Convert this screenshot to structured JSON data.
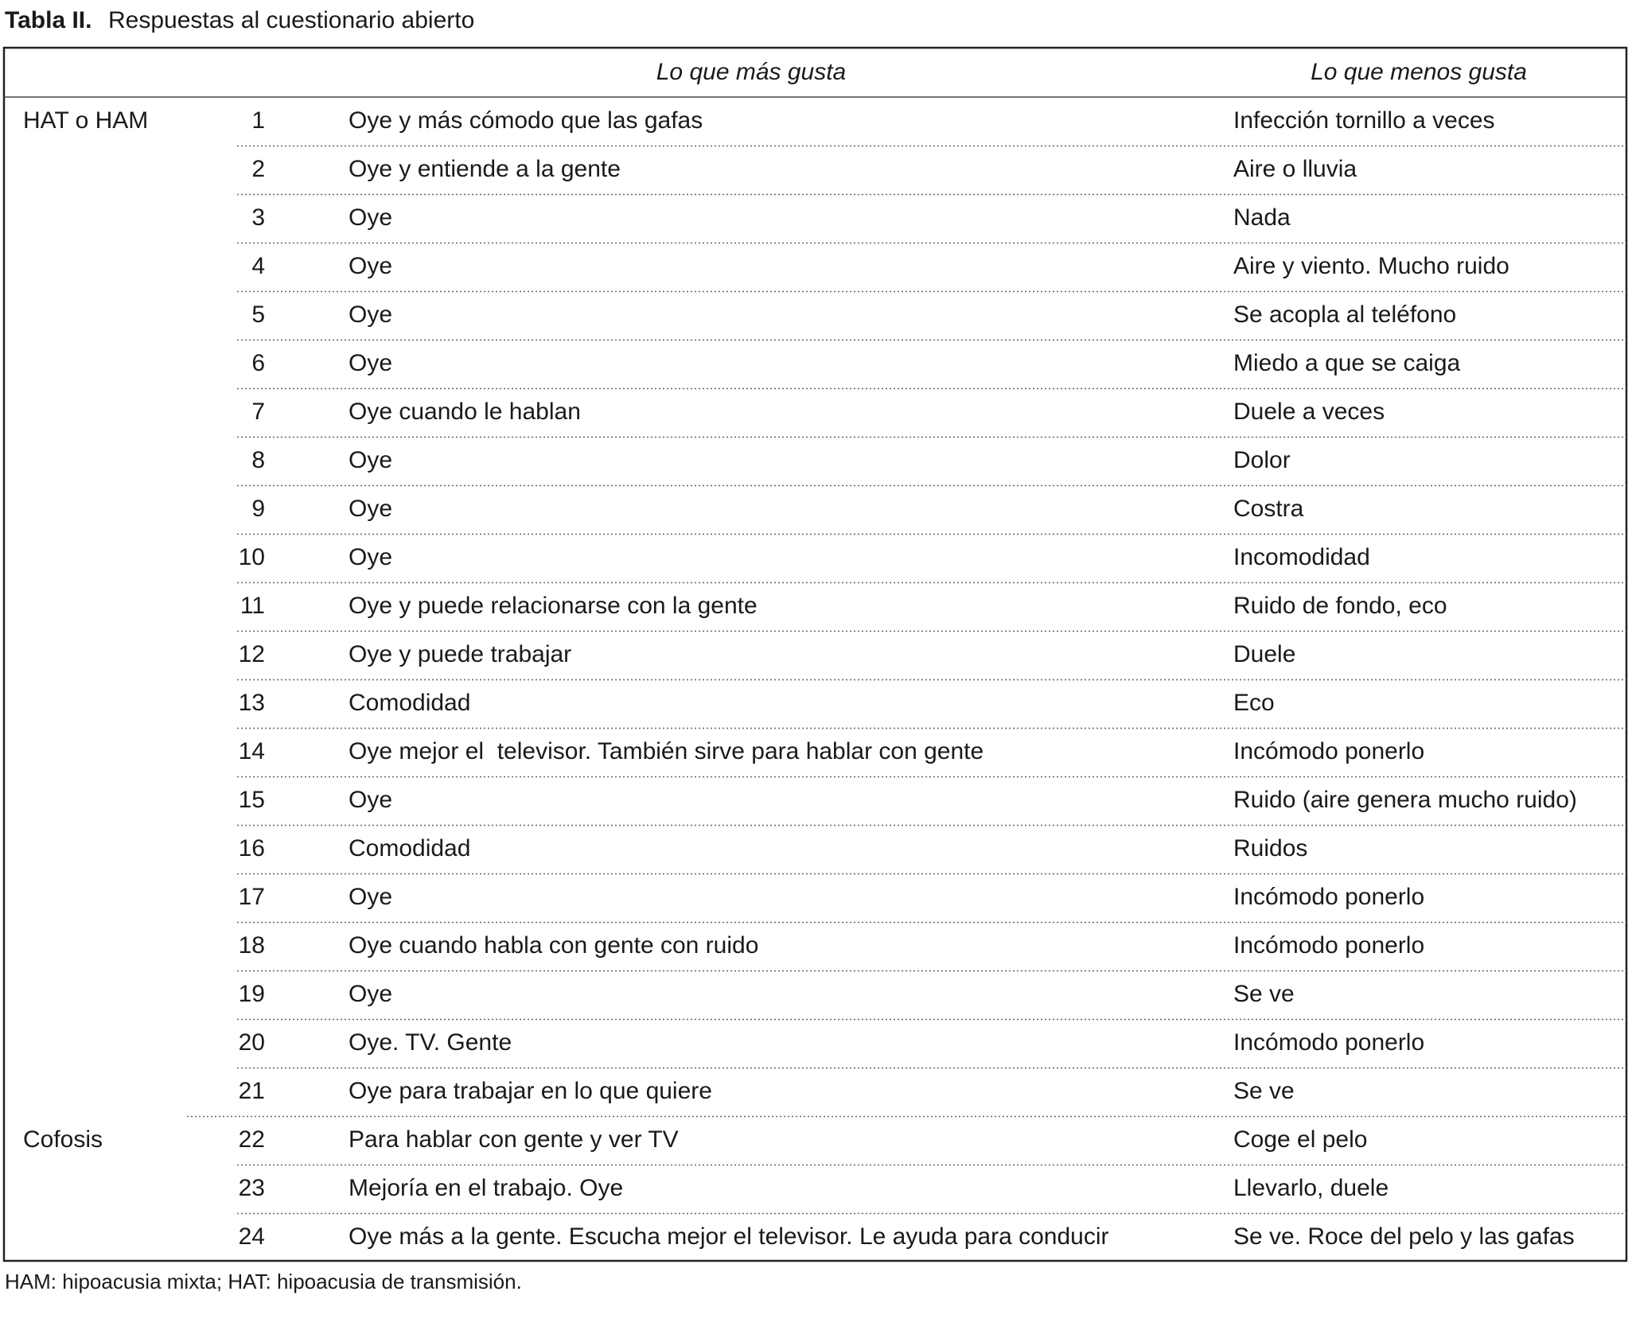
{
  "title": {
    "label": "Tabla II.",
    "text": "Respuestas al cuestionario abierto"
  },
  "columns": {
    "likes": "Lo que más gusta",
    "dislikes": "Lo que menos gusta"
  },
  "groups": [
    {
      "name": "HAT o HAM",
      "rows": [
        {
          "number": 1,
          "likes": "Oye y más cómodo que las gafas",
          "dislikes": "Infección tornillo a veces"
        },
        {
          "number": 2,
          "likes": "Oye y entiende a la gente",
          "dislikes": "Aire o lluvia"
        },
        {
          "number": 3,
          "likes": "Oye",
          "dislikes": "Nada"
        },
        {
          "number": 4,
          "likes": "Oye",
          "dislikes": "Aire y viento. Mucho ruido"
        },
        {
          "number": 5,
          "likes": "Oye",
          "dislikes": "Se acopla al teléfono"
        },
        {
          "number": 6,
          "likes": "Oye",
          "dislikes": "Miedo a que se caiga"
        },
        {
          "number": 7,
          "likes": "Oye cuando le hablan",
          "dislikes": "Duele a veces"
        },
        {
          "number": 8,
          "likes": "Oye",
          "dislikes": "Dolor"
        },
        {
          "number": 9,
          "likes": "Oye",
          "dislikes": "Costra"
        },
        {
          "number": 10,
          "likes": "Oye",
          "dislikes": "Incomodidad"
        },
        {
          "number": 11,
          "likes": "Oye y puede relacionarse con la gente",
          "dislikes": "Ruido de fondo, eco"
        },
        {
          "number": 12,
          "likes": "Oye y puede trabajar",
          "dislikes": "Duele"
        },
        {
          "number": 13,
          "likes": "Comodidad",
          "dislikes": "Eco"
        },
        {
          "number": 14,
          "likes": "Oye mejor el  televisor. También sirve para hablar con gente",
          "dislikes": "Incómodo ponerlo"
        },
        {
          "number": 15,
          "likes": "Oye",
          "dislikes": "Ruido (aire genera mucho ruido)"
        },
        {
          "number": 16,
          "likes": "Comodidad",
          "dislikes": "Ruidos"
        },
        {
          "number": 17,
          "likes": "Oye",
          "dislikes": "Incómodo ponerlo"
        },
        {
          "number": 18,
          "likes": "Oye cuando habla con gente con ruido",
          "dislikes": "Incómodo ponerlo"
        },
        {
          "number": 19,
          "likes": "Oye",
          "dislikes": "Se ve"
        },
        {
          "number": 20,
          "likes": "Oye. TV. Gente",
          "dislikes": "Incómodo ponerlo"
        },
        {
          "number": 21,
          "likes": "Oye para trabajar en lo que quiere",
          "dislikes": "Se ve"
        }
      ]
    },
    {
      "name": "Cofosis",
      "rows": [
        {
          "number": 22,
          "likes": "Para hablar con gente y ver TV",
          "dislikes": "Coge el pelo"
        },
        {
          "number": 23,
          "likes": "Mejoría en el trabajo. Oye",
          "dislikes": "Llevarlo, duele"
        },
        {
          "number": 24,
          "likes": "Oye más a la gente. Escucha mejor el televisor. Le ayuda para conducir",
          "dislikes": "Se ve. Roce del pelo y las gafas"
        }
      ]
    }
  ],
  "footnote": "HAM: hipoacusia mixta; HAT: hipoacusia de transmisión."
}
